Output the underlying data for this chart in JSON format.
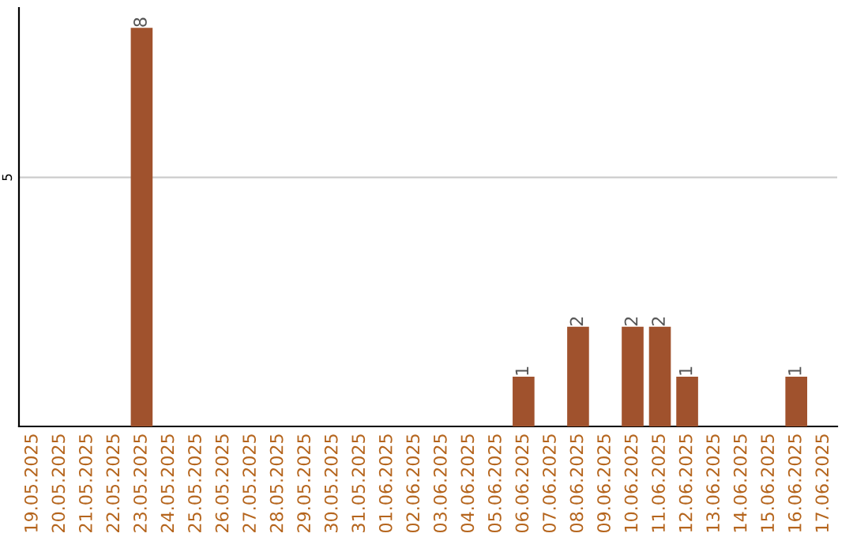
{
  "chart_data": {
    "type": "bar",
    "categories": [
      "19.05.2025",
      "20.05.2025",
      "21.05.2025",
      "22.05.2025",
      "23.05.2025",
      "24.05.2025",
      "25.05.2025",
      "26.05.2025",
      "27.05.2025",
      "28.05.2025",
      "29.05.2025",
      "30.05.2025",
      "31.05.2025",
      "01.06.2025",
      "02.06.2025",
      "03.06.2025",
      "04.06.2025",
      "05.06.2025",
      "06.06.2025",
      "07.06.2025",
      "08.06.2025",
      "09.06.2025",
      "10.06.2025",
      "11.06.2025",
      "12.06.2025",
      "13.06.2025",
      "14.06.2025",
      "15.06.2025",
      "16.06.2025",
      "17.06.2025"
    ],
    "values": [
      0,
      0,
      0,
      0,
      8,
      0,
      0,
      0,
      0,
      0,
      0,
      0,
      0,
      0,
      0,
      0,
      0,
      0,
      1,
      0,
      2,
      0,
      2,
      2,
      1,
      0,
      0,
      0,
      1,
      0
    ],
    "value_labels": [
      null,
      null,
      null,
      null,
      "8",
      null,
      null,
      null,
      null,
      null,
      null,
      null,
      null,
      null,
      null,
      null,
      null,
      null,
      "1",
      null,
      "2",
      null,
      "2",
      "2",
      "1",
      null,
      null,
      null,
      "1",
      null
    ],
    "color": "#a0522d",
    "ylim": [
      0,
      8.4
    ],
    "yticks": [
      5
    ],
    "grid": "y"
  }
}
